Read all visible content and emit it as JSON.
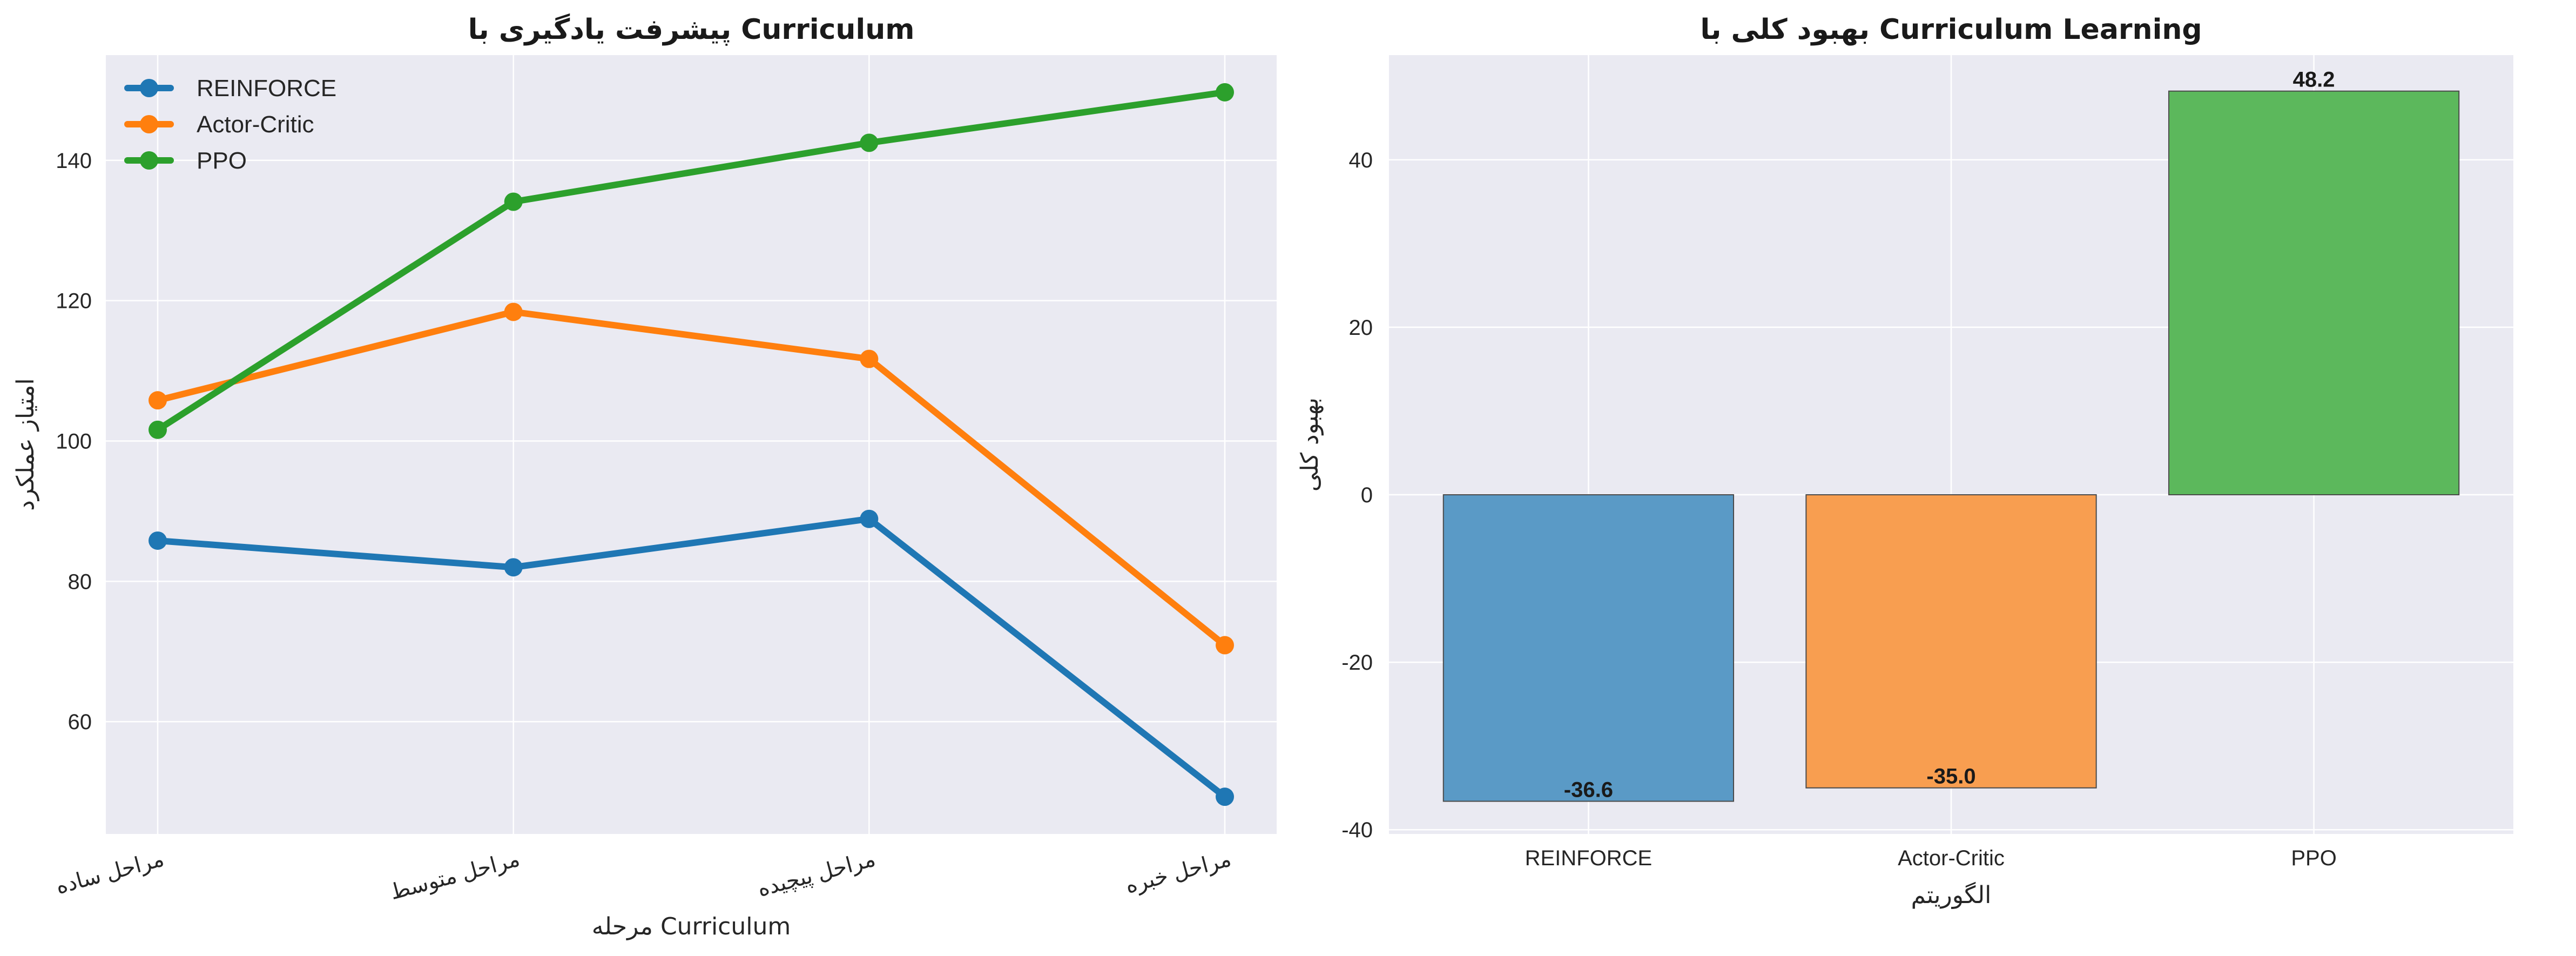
{
  "chart_data": [
    {
      "type": "line",
      "title": "پیشرفت یادگیری با Curriculum",
      "xlabel": "مرحله Curriculum",
      "ylabel": "امتیاز عملکرد",
      "categories": [
        "مراحل ساده",
        "مراحل متوسط",
        "مراحل پیچیده",
        "مراحل خبره"
      ],
      "ylim": [
        44,
        155
      ],
      "yticks": [
        60,
        80,
        100,
        120,
        140
      ],
      "grid": true,
      "legend_position": "top-left",
      "series": [
        {
          "name": "REINFORCE",
          "color": "#1f77b4",
          "values": [
            85.8,
            82.0,
            88.9,
            49.3
          ]
        },
        {
          "name": "Actor-Critic",
          "color": "#ff7f0e",
          "values": [
            105.8,
            118.4,
            111.7,
            70.9
          ]
        },
        {
          "name": "PPO",
          "color": "#2ca02c",
          "values": [
            101.6,
            134.1,
            142.5,
            149.7
          ]
        }
      ]
    },
    {
      "type": "bar",
      "title": "بهبود کلی با Curriculum Learning",
      "xlabel": "الگوریتم",
      "ylabel": "بهبود کلی",
      "categories": [
        "REINFORCE",
        "Actor-Critic",
        "PPO"
      ],
      "values": [
        -36.6,
        -35.0,
        48.2
      ],
      "value_labels": [
        "-36.6",
        "-35.0",
        "48.2"
      ],
      "colors": [
        "#5a9ac6",
        "#f89e50",
        "#5cb85c"
      ],
      "ylim": [
        -40.5,
        52.5
      ],
      "yticks": [
        -40,
        -20,
        0,
        20,
        40
      ],
      "grid": true
    }
  ]
}
